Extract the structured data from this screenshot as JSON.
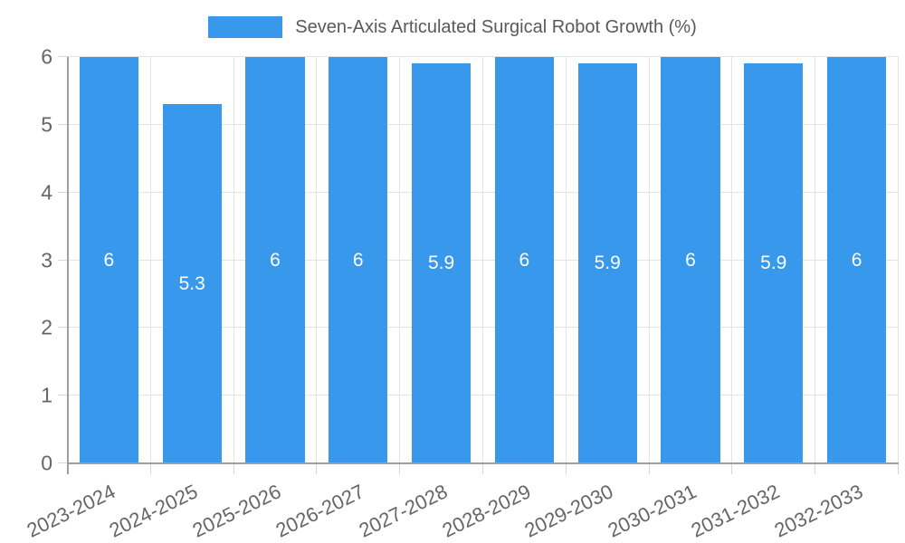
{
  "chart_data": {
    "type": "bar",
    "title": "Seven-Axis Articulated Surgical Robot Growth (%)",
    "categories": [
      "2023-2024",
      "2024-2025",
      "2025-2026",
      "2026-2027",
      "2027-2028",
      "2028-2029",
      "2029-2030",
      "2030-2031",
      "2031-2032",
      "2032-2033"
    ],
    "values": [
      6,
      5.3,
      6,
      6,
      5.9,
      6,
      5.9,
      6,
      5.9,
      6
    ],
    "value_labels": [
      "6",
      "5.3",
      "6",
      "6",
      "5.9",
      "6",
      "5.9",
      "6",
      "5.9",
      "6"
    ],
    "xlabel": "",
    "ylabel": "",
    "ylim": [
      0,
      6
    ],
    "yticks": [
      0,
      1,
      2,
      3,
      4,
      5,
      6
    ],
    "grid": true,
    "legend_position": "top-center",
    "colors": {
      "bar": "#3899EC",
      "value_label": "#ffffff",
      "axis_line": "#9E9E9E",
      "gridline": "#E3E3E3",
      "tick_text": "#666666",
      "legend_text": "#58595B",
      "background": "#ffffff"
    }
  }
}
